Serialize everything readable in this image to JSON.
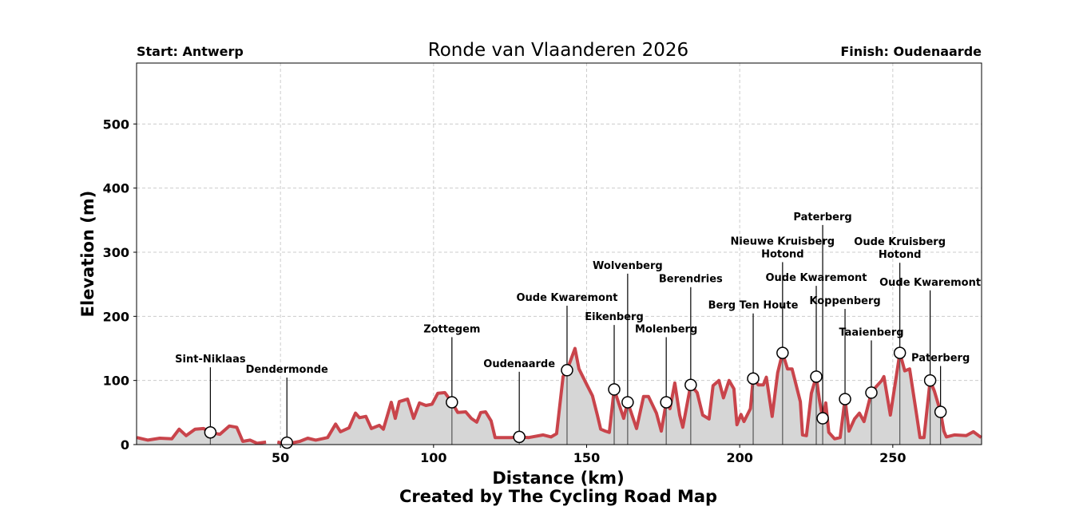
{
  "chart_data": {
    "type": "area",
    "title": "Ronde van Vlaanderen 2026",
    "start_label": "Start: Antwerp",
    "finish_label": "Finish: Oudenaarde",
    "xlabel": "Distance (km)",
    "ylabel": "Elevation (m)",
    "credit": "Created by The Cycling Road Map",
    "xlim": [
      3,
      279
    ],
    "ylim": [
      0,
      595
    ],
    "xticks": [
      50,
      100,
      150,
      200,
      250
    ],
    "yticks": [
      0,
      100,
      200,
      300,
      400,
      500
    ],
    "grid": true,
    "colors": {
      "line": "#c9444b",
      "fill": "#d6d6d6",
      "grid": "#cccccc"
    },
    "profile": [
      [
        [
          3.1,
          11
        ],
        [
          6.7,
          7
        ],
        [
          10.6,
          10
        ],
        [
          14.5,
          9
        ],
        [
          16.9,
          24
        ],
        [
          19.2,
          14
        ],
        [
          22.1,
          24
        ],
        [
          24.9,
          25
        ],
        [
          27,
          19
        ],
        [
          30.2,
          16
        ],
        [
          33.3,
          29
        ],
        [
          35.7,
          27
        ],
        [
          37.7,
          5
        ],
        [
          40.1,
          7
        ],
        [
          42.4,
          2
        ],
        [
          45.3,
          4
        ]
      ],
      [
        [
          49,
          4
        ],
        [
          52.1,
          1
        ],
        [
          56.3,
          5
        ],
        [
          58.9,
          10
        ],
        [
          61.5,
          7
        ],
        [
          65.4,
          11
        ],
        [
          68,
          32
        ],
        [
          69.6,
          20
        ],
        [
          72.4,
          26
        ],
        [
          74.5,
          49
        ],
        [
          75.8,
          42
        ],
        [
          77.9,
          44
        ],
        [
          79.7,
          25
        ],
        [
          82.3,
          30
        ],
        [
          83.6,
          24
        ],
        [
          86.2,
          66
        ],
        [
          87.5,
          41
        ],
        [
          88.8,
          67
        ],
        [
          91.5,
          71
        ],
        [
          93.5,
          41
        ],
        [
          95.4,
          65
        ],
        [
          97.5,
          61
        ],
        [
          99.5,
          63
        ],
        [
          101.4,
          80
        ],
        [
          103.7,
          81
        ],
        [
          106,
          66
        ],
        [
          107.9,
          50
        ],
        [
          110.5,
          51
        ],
        [
          112.3,
          41
        ],
        [
          114.1,
          35
        ],
        [
          115.4,
          50
        ],
        [
          117,
          51
        ],
        [
          118.8,
          37
        ],
        [
          120.1,
          11
        ],
        [
          125.4,
          11
        ],
        [
          128,
          12
        ],
        [
          131.1,
          11
        ],
        [
          135.8,
          15
        ],
        [
          138.4,
          12
        ],
        [
          140.2,
          17
        ],
        [
          142.3,
          106
        ],
        [
          143.6,
          116
        ],
        [
          146.2,
          150
        ],
        [
          147.5,
          118
        ],
        [
          150.1,
          93
        ],
        [
          151.9,
          76
        ],
        [
          153.5,
          46
        ],
        [
          154.6,
          24
        ],
        [
          156.1,
          21
        ],
        [
          157.4,
          19
        ],
        [
          159,
          86
        ],
        [
          160.5,
          64
        ],
        [
          162.1,
          41
        ],
        [
          163.4,
          66
        ],
        [
          166.3,
          25
        ],
        [
          168.6,
          75
        ],
        [
          170.2,
          75
        ],
        [
          172.8,
          49
        ],
        [
          174.4,
          21
        ],
        [
          176,
          66
        ],
        [
          177.2,
          56
        ],
        [
          178.8,
          96
        ],
        [
          180.4,
          46
        ],
        [
          181.4,
          27
        ],
        [
          184,
          93
        ],
        [
          186.1,
          81
        ],
        [
          187.9,
          46
        ],
        [
          190,
          40
        ],
        [
          191.3,
          92
        ],
        [
          193.2,
          100
        ],
        [
          194.7,
          73
        ],
        [
          196.5,
          100
        ],
        [
          198.1,
          87
        ],
        [
          199.1,
          31
        ],
        [
          200.4,
          47
        ],
        [
          201.4,
          36
        ],
        [
          203.5,
          56
        ],
        [
          204.4,
          103
        ],
        [
          206.1,
          93
        ],
        [
          207.7,
          93
        ],
        [
          208.7,
          105
        ],
        [
          210.6,
          44
        ],
        [
          212.4,
          112
        ],
        [
          214,
          143
        ],
        [
          215.6,
          118
        ],
        [
          217.1,
          118
        ],
        [
          219.8,
          67
        ],
        [
          220.5,
          15
        ],
        [
          221.8,
          14
        ],
        [
          223.4,
          80
        ],
        [
          225,
          106
        ],
        [
          226,
          71
        ],
        [
          227.1,
          41
        ],
        [
          228.1,
          65
        ],
        [
          229.1,
          19
        ],
        [
          231,
          9
        ],
        [
          232.8,
          11
        ],
        [
          234.4,
          71
        ],
        [
          235.7,
          21
        ],
        [
          237.5,
          40
        ],
        [
          239.1,
          49
        ],
        [
          240.6,
          36
        ],
        [
          243,
          81
        ],
        [
          244.5,
          90
        ],
        [
          246.4,
          100
        ],
        [
          247.1,
          106
        ],
        [
          249.2,
          46
        ],
        [
          252.3,
          143
        ],
        [
          253.9,
          115
        ],
        [
          255.5,
          118
        ],
        [
          257.8,
          46
        ],
        [
          258.9,
          11
        ],
        [
          260.2,
          11
        ],
        [
          262.2,
          100
        ],
        [
          263.6,
          83
        ],
        [
          265.6,
          51
        ],
        [
          266.7,
          21
        ],
        [
          267.5,
          12
        ],
        [
          270.1,
          15
        ],
        [
          274,
          14
        ],
        [
          276.3,
          20
        ],
        [
          278.9,
          11
        ]
      ]
    ],
    "points": [
      {
        "name": [
          "Sint-Niklaas"
        ],
        "km": 27.1,
        "elev": 19,
        "label_elev": 128
      },
      {
        "name": [
          "Dendermonde"
        ],
        "km": 52.1,
        "elev": 3,
        "label_elev": 112
      },
      {
        "name": [
          "Zottegem"
        ],
        "km": 106,
        "elev": 66,
        "label_elev": 175
      },
      {
        "name": [
          "Oudenaarde"
        ],
        "km": 128,
        "elev": 12,
        "label_elev": 121
      },
      {
        "name": [
          "Oude Kwaremont"
        ],
        "km": 143.6,
        "elev": 116,
        "label_elev": 224
      },
      {
        "name": [
          "Eikenberg"
        ],
        "km": 159,
        "elev": 86,
        "label_elev": 194
      },
      {
        "name": [
          "Wolvenberg"
        ],
        "km": 163.4,
        "elev": 66,
        "label_elev": 274
      },
      {
        "name": [
          "Molenberg"
        ],
        "km": 176,
        "elev": 66,
        "label_elev": 175
      },
      {
        "name": [
          "Berendries"
        ],
        "km": 184,
        "elev": 93,
        "label_elev": 253
      },
      {
        "name": [
          "Berg Ten Houte"
        ],
        "km": 204.4,
        "elev": 103,
        "label_elev": 212
      },
      {
        "name": [
          "Nieuwe Kruisberg",
          "Hotond"
        ],
        "km": 214,
        "elev": 143,
        "label_elev": 292
      },
      {
        "name": [
          "Oude Kwaremont"
        ],
        "km": 225,
        "elev": 106,
        "label_elev": 255
      },
      {
        "name": [
          "Paterberg"
        ],
        "km": 227.1,
        "elev": 41,
        "label_elev": 350
      },
      {
        "name": [
          "Koppenberg"
        ],
        "km": 234.4,
        "elev": 71,
        "label_elev": 219
      },
      {
        "name": [
          "Taaienberg"
        ],
        "km": 243,
        "elev": 81,
        "label_elev": 170
      },
      {
        "name": [
          "Oude Kruisberg",
          "Hotond"
        ],
        "km": 252.3,
        "elev": 143,
        "label_elev": 291
      },
      {
        "name": [
          "Oude Kwaremont"
        ],
        "km": 262.2,
        "elev": 100,
        "label_elev": 248
      },
      {
        "name": [
          "Paterberg"
        ],
        "km": 265.6,
        "elev": 51,
        "label_elev": 130
      }
    ]
  }
}
